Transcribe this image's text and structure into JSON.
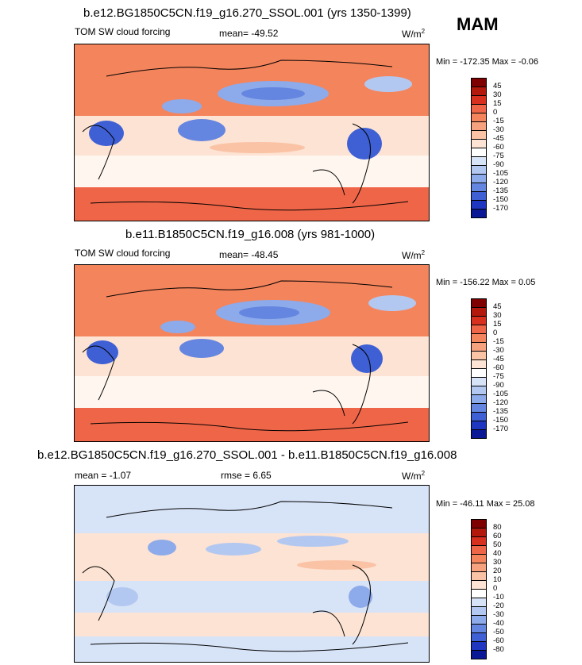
{
  "season": "MAM",
  "units_base": "W/m",
  "units_exp": "2",
  "panels": [
    {
      "title": "b.e12.BG1850C5CN.f19_g16.270_SSOL.001 (yrs 1350-1399)",
      "left_label": "TOM SW cloud forcing",
      "center_label": "mean= -49.52",
      "minmax": "Min = -172.35 Max =  -0.06",
      "colorbar_labels": [
        "45",
        "30",
        "15",
        "0",
        "-15",
        "-30",
        "-45",
        "-60",
        "-75",
        "-90",
        "-105",
        "-120",
        "-135",
        "-150",
        "-170"
      ],
      "colorbar_colors": [
        "#7f0000",
        "#b2180b",
        "#d7301f",
        "#ef6548",
        "#f4845c",
        "#f7a27e",
        "#fac3a6",
        "#fde3d3",
        "#ffffff",
        "#d7e3f7",
        "#b3c8f1",
        "#8daaea",
        "#6586e0",
        "#3e60d4",
        "#1f37c0",
        "#0a1896"
      ]
    },
    {
      "title": "b.e11.B1850C5CN.f19_g16.008 (yrs 981-1000)",
      "left_label": "TOM SW cloud forcing",
      "center_label": "mean= -48.45",
      "minmax": "Min = -156.22 Max =  0.05",
      "colorbar_labels": [
        "45",
        "30",
        "15",
        "0",
        "-15",
        "-30",
        "-45",
        "-60",
        "-75",
        "-90",
        "-105",
        "-120",
        "-135",
        "-150",
        "-170"
      ],
      "colorbar_colors": [
        "#7f0000",
        "#b2180b",
        "#d7301f",
        "#ef6548",
        "#f4845c",
        "#f7a27e",
        "#fac3a6",
        "#fde3d3",
        "#ffffff",
        "#d7e3f7",
        "#b3c8f1",
        "#8daaea",
        "#6586e0",
        "#3e60d4",
        "#1f37c0",
        "#0a1896"
      ]
    },
    {
      "title": "b.e12.BG1850C5CN.f19_g16.270_SSOL.001 - b.e11.B1850C5CN.f19_g16.008",
      "left_label": "mean =  -1.07",
      "center_label": "rmse =   6.65",
      "minmax": "Min = -46.11 Max =  25.08",
      "colorbar_labels": [
        "80",
        "60",
        "50",
        "40",
        "30",
        "20",
        "10",
        "0",
        "-10",
        "-20",
        "-30",
        "-40",
        "-50",
        "-60",
        "-80"
      ],
      "colorbar_colors": [
        "#7f0000",
        "#b2180b",
        "#d7301f",
        "#ef6548",
        "#f4845c",
        "#f7a27e",
        "#fac3a6",
        "#fde3d3",
        "#ffffff",
        "#d7e3f7",
        "#b3c8f1",
        "#8daaea",
        "#6586e0",
        "#3e60d4",
        "#1f37c0",
        "#0a1896"
      ]
    }
  ]
}
